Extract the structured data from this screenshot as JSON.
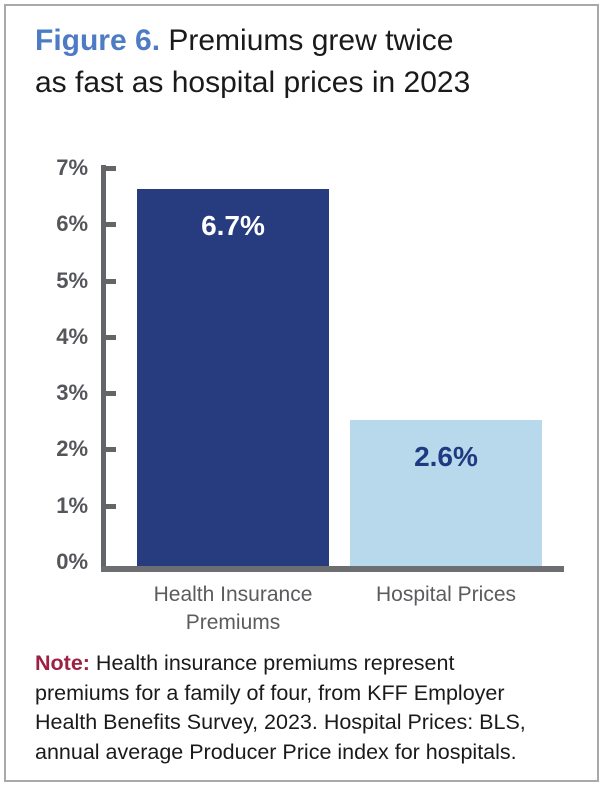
{
  "figure": {
    "label": "Figure 6.",
    "title_lines": [
      "Premiums grew twice",
      "as fast as hospital prices in 2023"
    ]
  },
  "chart_data": {
    "type": "bar",
    "title": "Figure 6. Premiums grew twice as fast as hospital prices in 2023",
    "categories": [
      "Health Insurance Premiums",
      "Hospital Prices"
    ],
    "values": [
      6.7,
      2.6
    ],
    "value_labels": [
      "6.7%",
      "2.6%"
    ],
    "xlabel": "",
    "ylabel": "",
    "ylim": [
      0,
      7
    ],
    "yticks": [
      "0%",
      "1%",
      "2%",
      "3%",
      "4%",
      "5%",
      "6%",
      "7%"
    ],
    "grid": false,
    "legend": false,
    "bar_colors": [
      "#263c7f",
      "#b8d8eb"
    ],
    "value_label_colors": [
      "#ffffff",
      "#1f3a80"
    ]
  },
  "note": {
    "label": "Note:",
    "text": "Health insurance premiums represent premiums for a family of four, from KFF Employer Health Benefits Survey, 2023. Hospital Prices: BLS, annual average Producer Price index for hospitals.",
    "lines": [
      "Health insurance premiums represent",
      "premiums for a family of four, from KFF Employer",
      "Health Benefits Survey, 2023. Hospital Prices: BLS,",
      "annual average Producer Price index for hospitals."
    ]
  },
  "colors": {
    "figure_label_blue": "#4d7cc4",
    "bar_dark_navy": "#263c7f",
    "bar_light_blue": "#b8d8eb",
    "axis_gray": "#636569",
    "tick_label_gray": "#54565a",
    "category_label_gray": "#5b5c5f",
    "note_red": "#9d2143",
    "frame_border": "#a9a9ac"
  }
}
